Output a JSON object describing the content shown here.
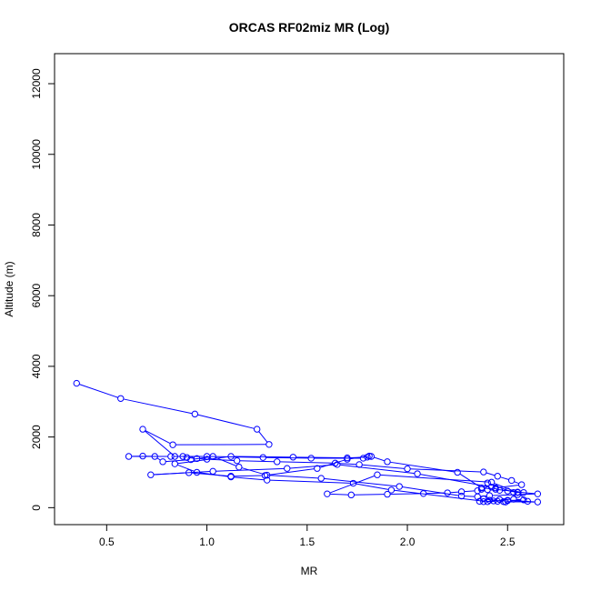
{
  "chart_data": {
    "type": "line",
    "title": "ORCAS RF02miz MR (Log)",
    "xlabel": "MR",
    "ylabel": "Altitude (m)",
    "xlim": [
      0.24,
      2.78
    ],
    "ylim": [
      -480,
      12850
    ],
    "x_ticks": [
      0.5,
      1.0,
      1.5,
      2.0,
      2.5
    ],
    "x_tick_labels": [
      "0.5",
      "1.0",
      "1.5",
      "2.0",
      "2.5"
    ],
    "y_ticks": [
      0,
      2000,
      4000,
      6000,
      8000,
      10000,
      12000
    ],
    "y_tick_labels": [
      "0",
      "2000",
      "4000",
      "6000",
      "8000",
      "10000",
      "12000"
    ],
    "grid": false,
    "series_color": "#0000ff",
    "markers": "open-circle",
    "series": [
      {
        "x": [
          0.35,
          0.57,
          0.94,
          1.25,
          1.31,
          0.83,
          0.68,
          0.84,
          0.88,
          0.9,
          0.95,
          1.0,
          1.15,
          1.35,
          1.64,
          1.76,
          2.0,
          2.38,
          2.45,
          2.52,
          2.57,
          2.44,
          2.4,
          2.35,
          2.27,
          2.2,
          2.08,
          1.9,
          1.72,
          1.6,
          1.85,
          2.42,
          2.55,
          2.6,
          2.49,
          2.45,
          2.38,
          2.5,
          2.65,
          2.48,
          2.38,
          2.36,
          2.41,
          2.46,
          2.53,
          2.58,
          2.5,
          2.43,
          2.4,
          1.92,
          1.73,
          1.3,
          1.12,
          0.95,
          0.84,
          1.12,
          1.43,
          1.7,
          1.8,
          1.81,
          1.7,
          1.55,
          1.29,
          1.12,
          0.91,
          0.72,
          1.03,
          1.4,
          1.65,
          2.05,
          2.42,
          2.46,
          2.5,
          2.55,
          2.65,
          2.55,
          2.41,
          2.35,
          2.27,
          1.96,
          1.57,
          1.3,
          1.16,
          1.03,
          0.92,
          0.78,
          0.74,
          0.68,
          0.61,
          0.82,
          1.0,
          1.28,
          1.52,
          1.78,
          1.82,
          1.9,
          2.25,
          2.37,
          2.44,
          2.58,
          2.53,
          2.4,
          2.37
        ],
        "y": [
          3520,
          3090,
          2650,
          2220,
          1790,
          1780,
          2220,
          1450,
          1450,
          1420,
          1390,
          1370,
          1330,
          1300,
          1260,
          1220,
          1100,
          1010,
          890,
          770,
          650,
          560,
          510,
          480,
          450,
          420,
          400,
          380,
          360,
          390,
          930,
          720,
          430,
          180,
          160,
          180,
          170,
          210,
          160,
          170,
          250,
          180,
          210,
          230,
          240,
          220,
          200,
          190,
          170,
          500,
          690,
          780,
          870,
          1000,
          1240,
          1450,
          1430,
          1410,
          1430,
          1460,
          1370,
          1110,
          910,
          890,
          990,
          930,
          1030,
          1110,
          1220,
          960,
          580,
          490,
          470,
          440,
          390,
          370,
          340,
          310,
          330,
          600,
          830,
          920,
          1150,
          1450,
          1360,
          1300,
          1450,
          1460,
          1450,
          1450,
          1450,
          1420,
          1400,
          1400,
          1450,
          1300,
          1000,
          560,
          520,
          430,
          430,
          700,
          520
        ]
      }
    ]
  }
}
